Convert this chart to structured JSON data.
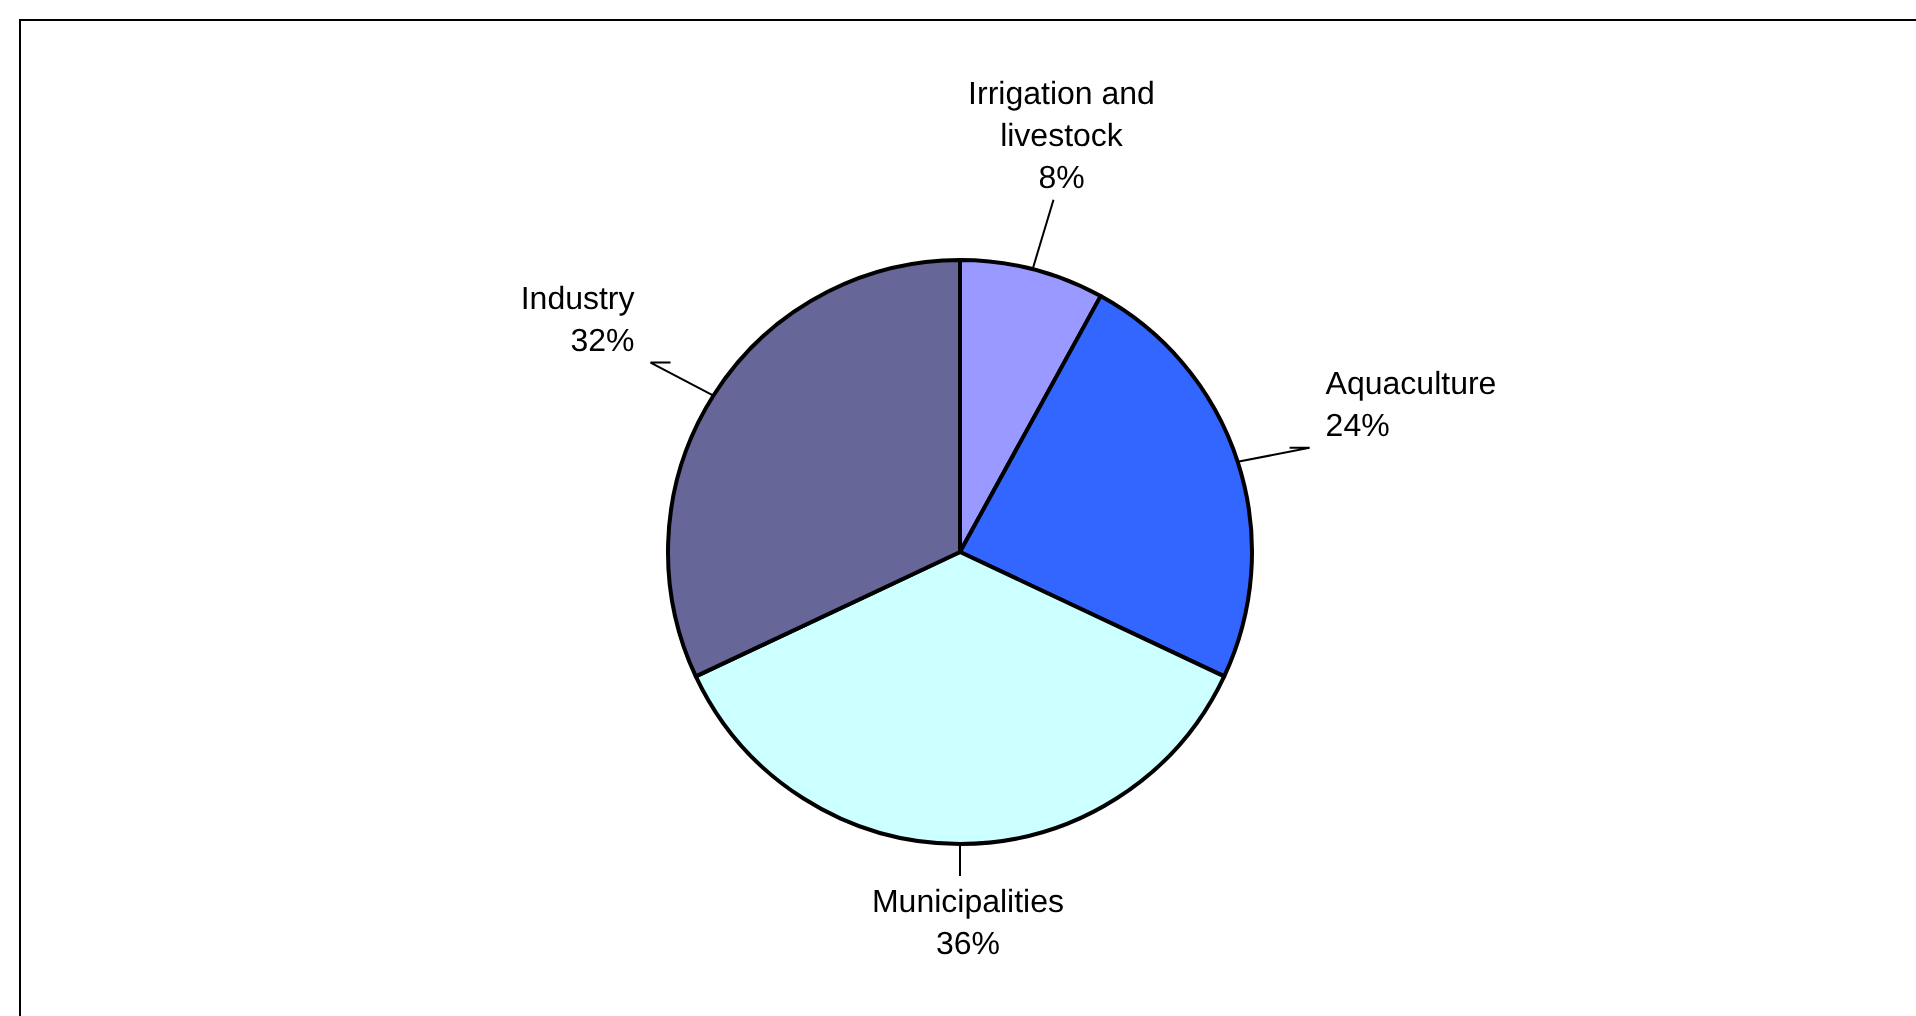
{
  "chart_data": {
    "type": "pie",
    "categories": [
      "Irrigation and livestock",
      "Aquaculture",
      "Municipalities",
      "Industry"
    ],
    "values": [
      8,
      24,
      36,
      32
    ],
    "colors": [
      "#9999ff",
      "#3366ff",
      "#ccffff",
      "#666699"
    ],
    "value_labels": [
      "8%",
      "24%",
      "36%",
      "32%"
    ]
  }
}
